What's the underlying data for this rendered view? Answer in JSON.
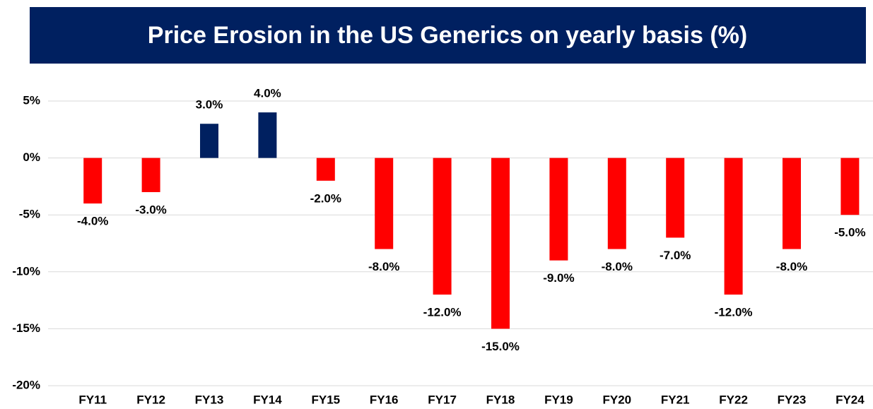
{
  "chart_data": {
    "type": "bar",
    "title": "Price Erosion in the US Generics on yearly basis (%)",
    "categories": [
      "FY11",
      "FY12",
      "FY13",
      "FY14",
      "FY15",
      "FY16",
      "FY17",
      "FY18",
      "FY19",
      "FY20",
      "FY21",
      "FY22",
      "FY23",
      "FY24"
    ],
    "values": [
      -4,
      -3,
      3,
      4,
      -2,
      -8,
      -12,
      -15,
      -9,
      -8,
      -7,
      -12,
      -8,
      -5
    ],
    "value_labels": [
      "-4.0%",
      "-3.0%",
      "3.0%",
      "4.0%",
      "-2.0%",
      "-8.0%",
      "-12.0%",
      "-15.0%",
      "-9.0%",
      "-8.0%",
      "-7.0%",
      "-12.0%",
      "-8.0%",
      "-5.0%"
    ],
    "colors": [
      "#ff0000",
      "#ff0000",
      "#002060",
      "#002060",
      "#ff0000",
      "#ff0000",
      "#ff0000",
      "#ff0000",
      "#ff0000",
      "#ff0000",
      "#ff0000",
      "#ff0000",
      "#ff0000",
      "#ff0000"
    ],
    "ylim": [
      -20,
      5
    ],
    "yticks": [
      {
        "value": 5,
        "label": "5%"
      },
      {
        "value": 0,
        "label": "0%"
      },
      {
        "value": -5,
        "label": "-5%"
      },
      {
        "value": -10,
        "label": "-10%"
      },
      {
        "value": -15,
        "label": "-15%"
      },
      {
        "value": -20,
        "label": "-20%"
      }
    ],
    "grid": true
  }
}
